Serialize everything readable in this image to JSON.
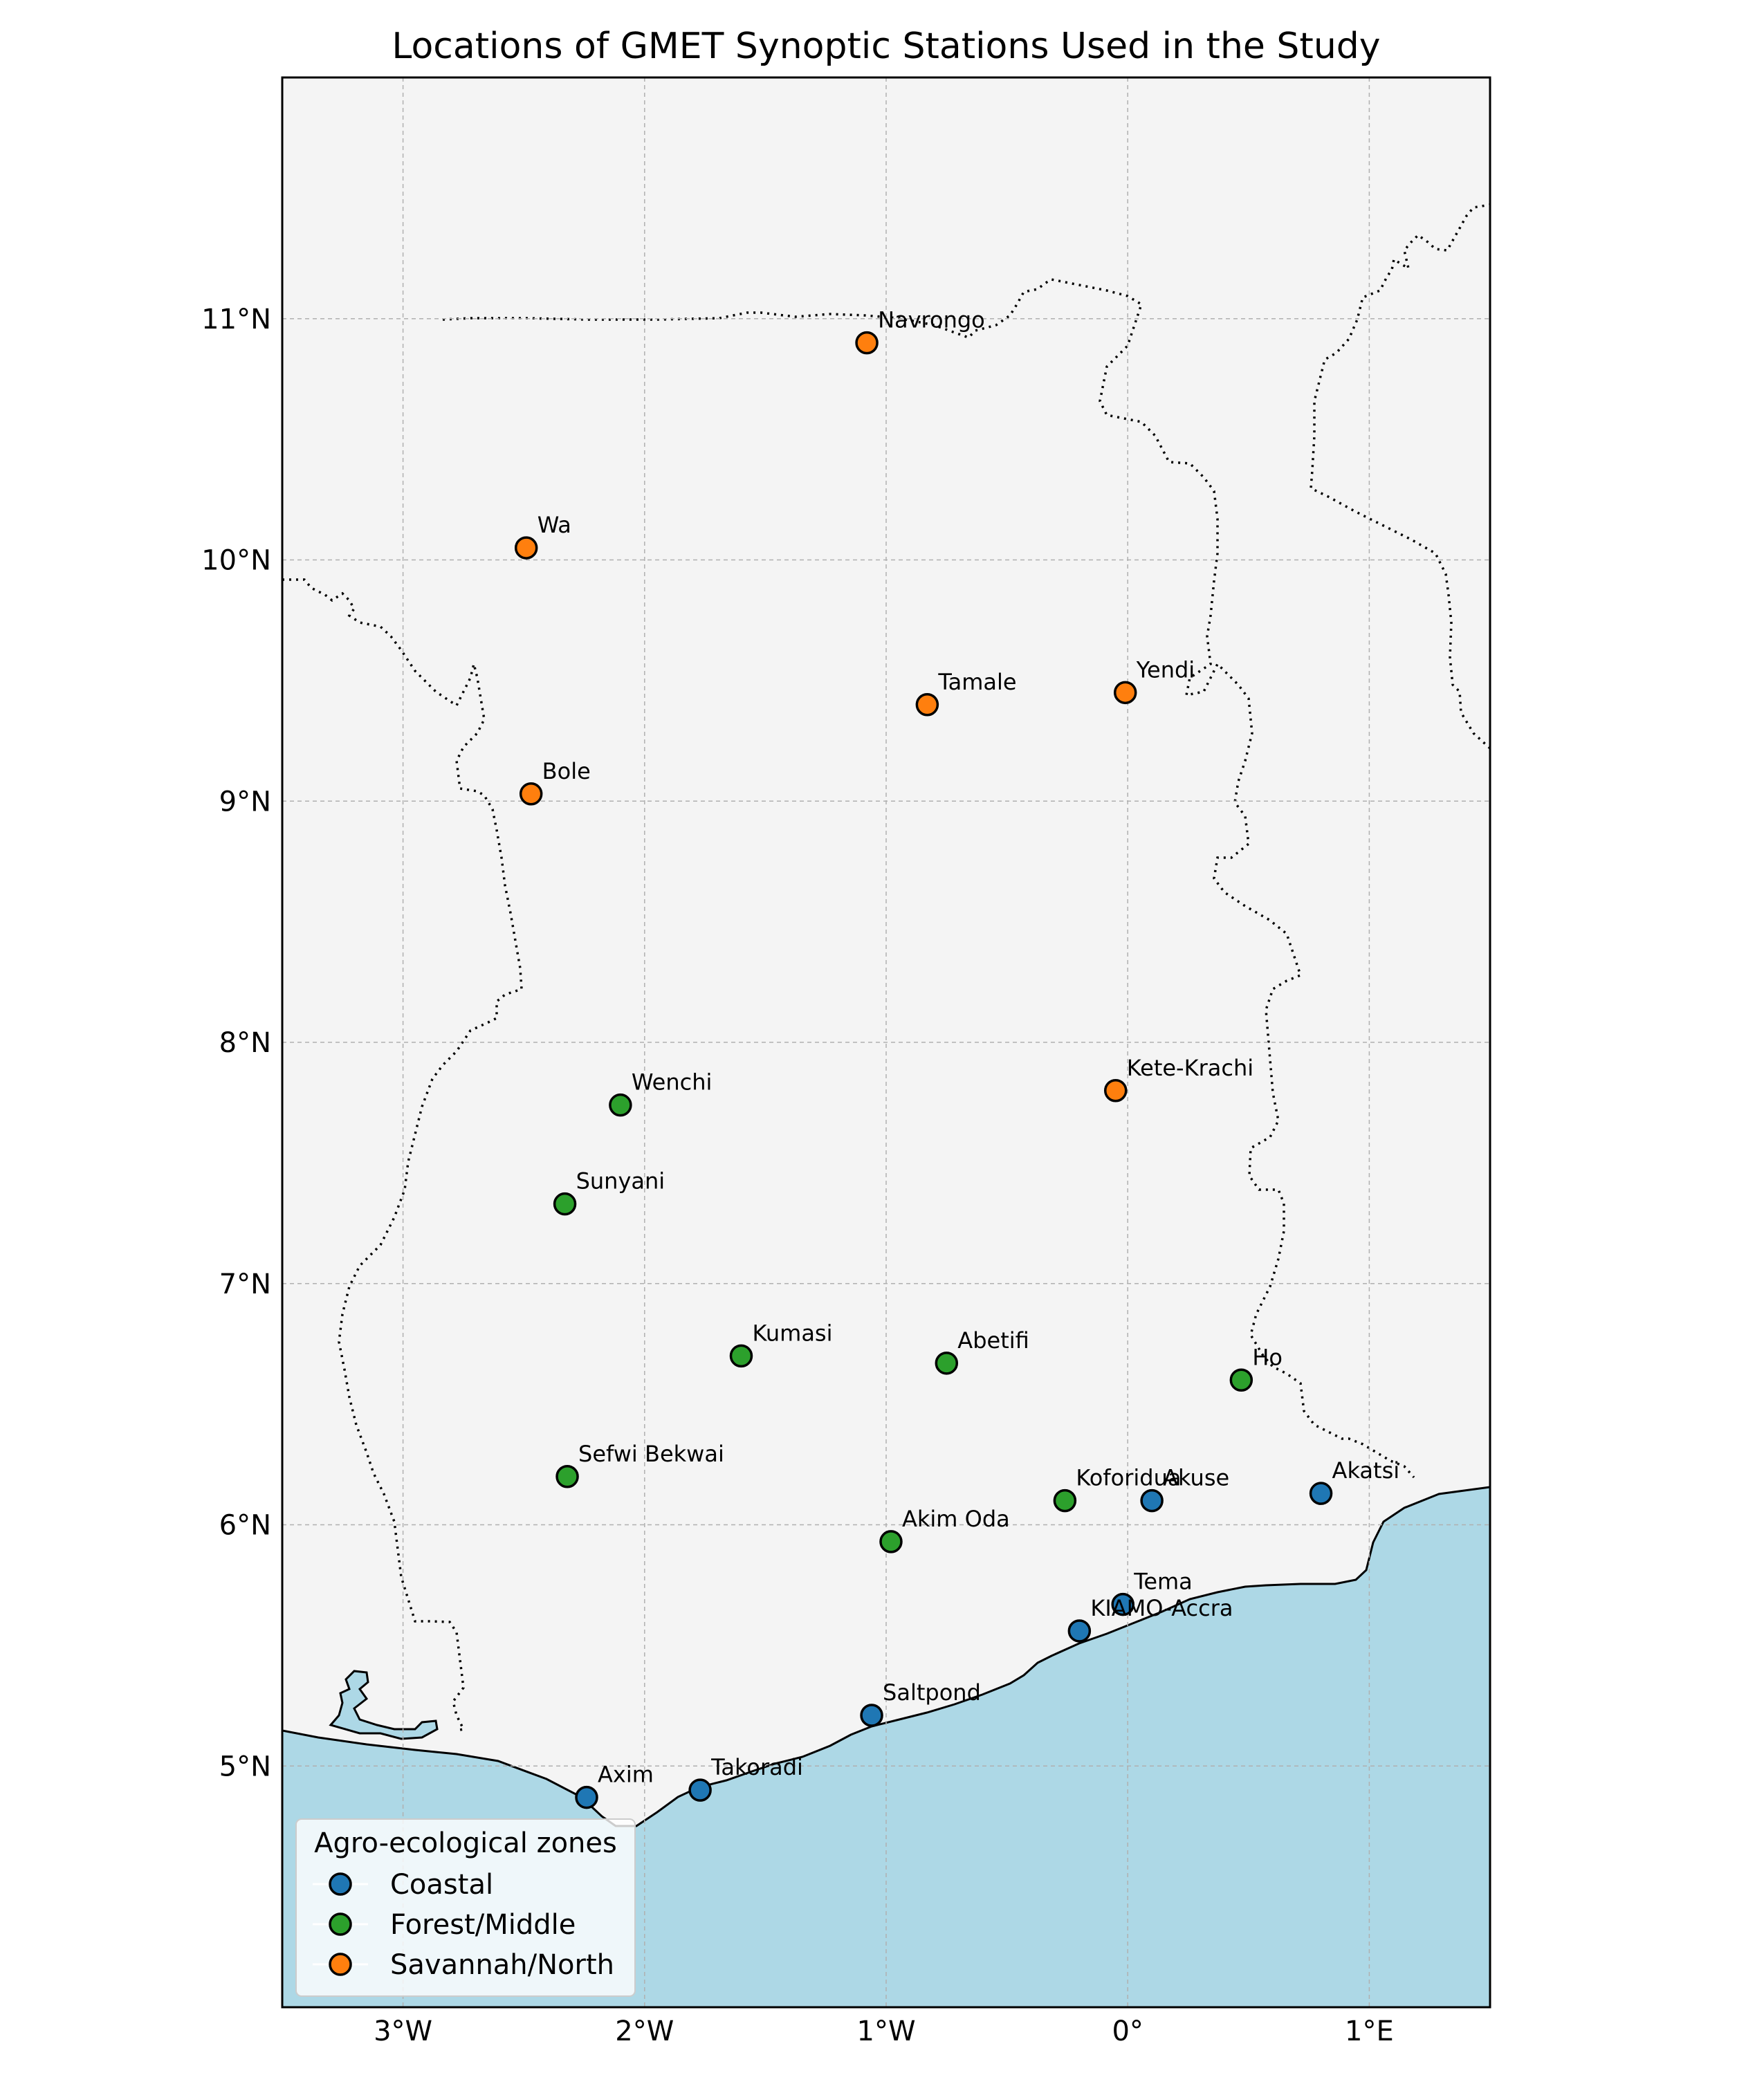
{
  "title": "Locations of GMET Synoptic Stations Used in the Study",
  "map_extent": {
    "lon": [
      -3.5,
      1.5
    ],
    "lat": [
      4.0,
      12.0
    ]
  },
  "x_ticks": [
    {
      "value": -3,
      "label": "3°W"
    },
    {
      "value": -2,
      "label": "2°W"
    },
    {
      "value": -1,
      "label": "1°W"
    },
    {
      "value": 0,
      "label": "0°"
    },
    {
      "value": 1,
      "label": "1°E"
    }
  ],
  "y_ticks": [
    {
      "value": 5,
      "label": "5°N"
    },
    {
      "value": 6,
      "label": "6°N"
    },
    {
      "value": 7,
      "label": "7°N"
    },
    {
      "value": 8,
      "label": "8°N"
    },
    {
      "value": 9,
      "label": "9°N"
    },
    {
      "value": 10,
      "label": "10°N"
    },
    {
      "value": 11,
      "label": "11°N"
    }
  ],
  "colors": {
    "land": "#f4f4f4",
    "ocean": "#add8e6",
    "grid": "#b0b0b0",
    "Coastal": "#1f77b4",
    "Forest/Middle": "#2ca02c",
    "Savannah/North": "#ff7f0e"
  },
  "legend": {
    "title": "Agro-ecological zones",
    "items": [
      {
        "zone": "Coastal",
        "label": "Coastal"
      },
      {
        "zone": "Forest/Middle",
        "label": "Forest/Middle"
      },
      {
        "zone": "Savannah/North",
        "label": "Savannah/North"
      }
    ]
  },
  "stations": [
    {
      "name": "Navrongo",
      "lon": -1.08,
      "lat": 10.9,
      "zone": "Savannah/North"
    },
    {
      "name": "Wa",
      "lon": -2.49,
      "lat": 10.05,
      "zone": "Savannah/North"
    },
    {
      "name": "Tamale",
      "lon": -0.83,
      "lat": 9.4,
      "zone": "Savannah/North"
    },
    {
      "name": "Yendi",
      "lon": -0.01,
      "lat": 9.45,
      "zone": "Savannah/North"
    },
    {
      "name": "Bole",
      "lon": -2.47,
      "lat": 9.03,
      "zone": "Savannah/North"
    },
    {
      "name": "Kete-Krachi",
      "lon": -0.05,
      "lat": 7.8,
      "zone": "Savannah/North"
    },
    {
      "name": "Wenchi",
      "lon": -2.1,
      "lat": 7.74,
      "zone": "Forest/Middle"
    },
    {
      "name": "Sunyani",
      "lon": -2.33,
      "lat": 7.33,
      "zone": "Forest/Middle"
    },
    {
      "name": "Kumasi",
      "lon": -1.6,
      "lat": 6.7,
      "zone": "Forest/Middle"
    },
    {
      "name": "Abetifi",
      "lon": -0.75,
      "lat": 6.67,
      "zone": "Forest/Middle"
    },
    {
      "name": "Ho",
      "lon": 0.47,
      "lat": 6.6,
      "zone": "Forest/Middle"
    },
    {
      "name": "Sefwi Bekwai",
      "lon": -2.32,
      "lat": 6.2,
      "zone": "Forest/Middle"
    },
    {
      "name": "Koforidua",
      "lon": -0.26,
      "lat": 6.1,
      "zone": "Forest/Middle"
    },
    {
      "name": "Akim Oda",
      "lon": -0.98,
      "lat": 5.93,
      "zone": "Forest/Middle"
    },
    {
      "name": "Akuse",
      "lon": 0.1,
      "lat": 6.1,
      "zone": "Coastal"
    },
    {
      "name": "Akatsi",
      "lon": 0.8,
      "lat": 6.13,
      "zone": "Coastal"
    },
    {
      "name": "Tema",
      "lon": -0.02,
      "lat": 5.67,
      "zone": "Coastal"
    },
    {
      "name": "KIAMO-Accra",
      "lon": -0.2,
      "lat": 5.56,
      "zone": "Coastal"
    },
    {
      "name": "Saltpond",
      "lon": -1.06,
      "lat": 5.21,
      "zone": "Coastal"
    },
    {
      "name": "Takoradi",
      "lon": -1.77,
      "lat": 4.9,
      "zone": "Coastal"
    },
    {
      "name": "Axim",
      "lon": -2.24,
      "lat": 4.87,
      "zone": "Coastal"
    }
  ]
}
